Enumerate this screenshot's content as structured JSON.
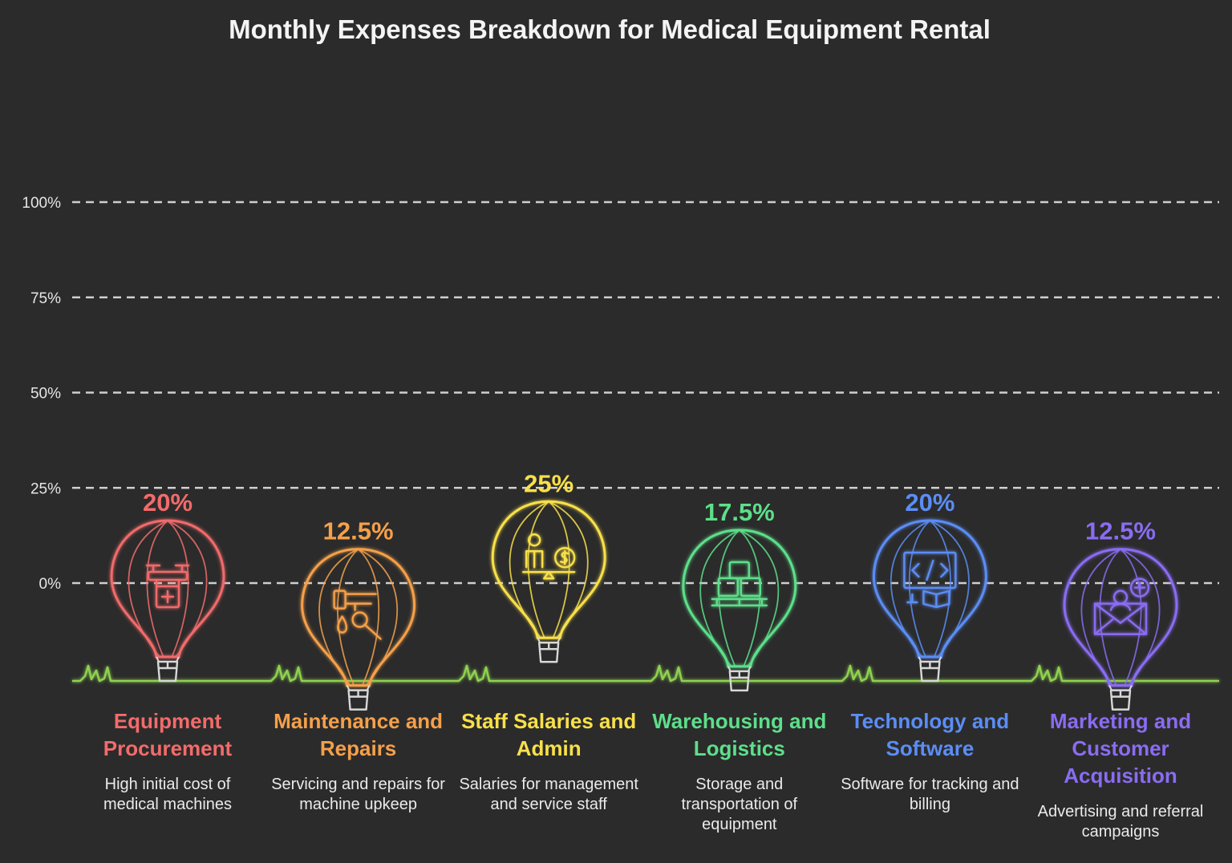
{
  "chart_data": {
    "type": "bar",
    "title": "Monthly Expenses Breakdown for Medical Equipment Rental",
    "xlabel": "",
    "ylabel": "",
    "ylim": [
      0,
      100
    ],
    "yticks": [
      0,
      25,
      50,
      75,
      100
    ],
    "ytick_labels": [
      "0%",
      "25%",
      "50%",
      "75%",
      "100%"
    ],
    "grid": true,
    "categories": [
      "Equipment Procurement",
      "Maintenance and Repairs",
      "Staff Salaries and Admin",
      "Warehousing and Logistics",
      "Technology and Software",
      "Marketing and Customer Acquisition"
    ],
    "values": [
      20,
      12.5,
      25,
      17.5,
      20,
      12.5
    ],
    "value_labels": [
      "20%",
      "12.5%",
      "25%",
      "17.5%",
      "20%",
      "12.5%"
    ],
    "descriptions": [
      "High initial cost of medical machines",
      "Servicing and repairs for machine upkeep",
      "Salaries for management and service staff",
      "Storage and transportation of equipment",
      "Software for tracking and billing",
      "Advertising and referral campaigns"
    ],
    "colors": [
      "#f26b6b",
      "#f5a04a",
      "#f8e04a",
      "#5ddf8a",
      "#5b8df5",
      "#8a6cf2"
    ],
    "icons": [
      "drone-medical-icon",
      "wrench-drop-icon",
      "person-dollar-scale-icon",
      "boxes-pallet-icon",
      "code-monitor-book-icon",
      "mail-user-plus-icon"
    ],
    "ground_color": "#8fd14f",
    "grid_color": "#cfcfcf"
  }
}
